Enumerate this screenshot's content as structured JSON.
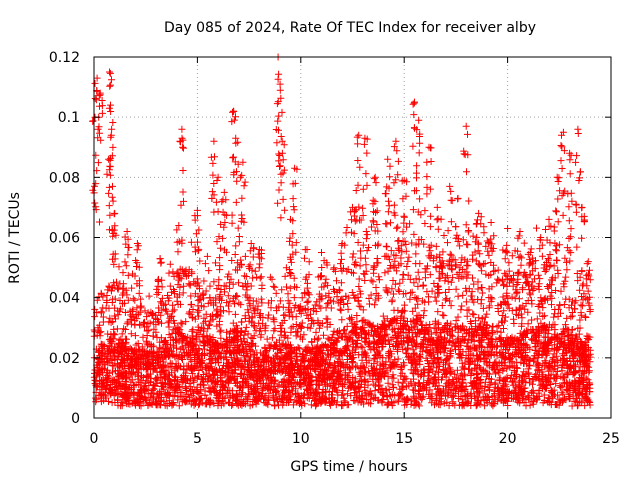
{
  "chart_data": {
    "type": "scatter",
    "title": "Day 085 of 2024, Rate Of TEC Index for receiver alby",
    "xlabel": "GPS time / hours",
    "ylabel": "ROTI / TECUs",
    "xlim": [
      0,
      25
    ],
    "ylim": [
      0,
      0.12
    ],
    "x_ticks": [
      0,
      5,
      10,
      15,
      20,
      25
    ],
    "x_tick_labels": [
      "0",
      "5",
      "10",
      "15",
      "20",
      "25"
    ],
    "y_ticks": [
      0,
      0.02,
      0.04,
      0.06,
      0.08,
      0.1,
      0.12
    ],
    "y_tick_labels": [
      "0",
      "0.02",
      "0.04",
      "0.06",
      "0.08",
      "0.1",
      "0.12"
    ],
    "grid": true,
    "marker": "+",
    "marker_color": "#ff0000",
    "seed": 85,
    "n_points": 5200,
    "x_range": [
      0,
      24
    ],
    "baseline_profile": [
      [
        0.0,
        0.016
      ],
      [
        1.0,
        0.02
      ],
      [
        2.0,
        0.016
      ],
      [
        3.0,
        0.015
      ],
      [
        4.0,
        0.022
      ],
      [
        5.0,
        0.02
      ],
      [
        6.0,
        0.018
      ],
      [
        7.0,
        0.022
      ],
      [
        8.0,
        0.016
      ],
      [
        9.0,
        0.018
      ],
      [
        10.0,
        0.016
      ],
      [
        11.0,
        0.017
      ],
      [
        12.0,
        0.022
      ],
      [
        13.0,
        0.024
      ],
      [
        14.0,
        0.024
      ],
      [
        15.0,
        0.025
      ],
      [
        16.0,
        0.024
      ],
      [
        17.0,
        0.023
      ],
      [
        18.0,
        0.022
      ],
      [
        19.0,
        0.022
      ],
      [
        20.0,
        0.02
      ],
      [
        21.0,
        0.021
      ],
      [
        22.0,
        0.023
      ],
      [
        23.0,
        0.022
      ],
      [
        24.0,
        0.016
      ]
    ],
    "peaks": [
      [
        0.05,
        0.1
      ],
      [
        0.15,
        0.113
      ],
      [
        0.3,
        0.108
      ],
      [
        0.75,
        0.115
      ],
      [
        0.8,
        0.104
      ],
      [
        0.85,
        0.096
      ],
      [
        1.0,
        0.068
      ],
      [
        1.6,
        0.062
      ],
      [
        2.1,
        0.058
      ],
      [
        3.2,
        0.053
      ],
      [
        4.1,
        0.064
      ],
      [
        4.25,
        0.096
      ],
      [
        5.0,
        0.069
      ],
      [
        5.8,
        0.092
      ],
      [
        6.0,
        0.08
      ],
      [
        6.3,
        0.075
      ],
      [
        6.75,
        0.102
      ],
      [
        6.85,
        0.093
      ],
      [
        7.2,
        0.085
      ],
      [
        7.6,
        0.058
      ],
      [
        8.0,
        0.056
      ],
      [
        8.9,
        0.12
      ],
      [
        9.0,
        0.111
      ],
      [
        9.1,
        0.092
      ],
      [
        9.5,
        0.066
      ],
      [
        9.7,
        0.083
      ],
      [
        10.3,
        0.056
      ],
      [
        11.0,
        0.055
      ],
      [
        12.0,
        0.058
      ],
      [
        12.5,
        0.07
      ],
      [
        12.8,
        0.094
      ],
      [
        13.1,
        0.093
      ],
      [
        13.6,
        0.08
      ],
      [
        14.2,
        0.086
      ],
      [
        14.6,
        0.092
      ],
      [
        15.0,
        0.079
      ],
      [
        15.5,
        0.105
      ],
      [
        15.7,
        0.099
      ],
      [
        16.2,
        0.09
      ],
      [
        16.6,
        0.07
      ],
      [
        17.2,
        0.077
      ],
      [
        17.6,
        0.073
      ],
      [
        18.0,
        0.097
      ],
      [
        18.6,
        0.068
      ],
      [
        19.2,
        0.065
      ],
      [
        20.0,
        0.063
      ],
      [
        20.6,
        0.062
      ],
      [
        21.1,
        0.055
      ],
      [
        21.6,
        0.06
      ],
      [
        22.0,
        0.066
      ],
      [
        22.4,
        0.08
      ],
      [
        22.7,
        0.095
      ],
      [
        23.0,
        0.088
      ],
      [
        23.4,
        0.096
      ],
      [
        23.6,
        0.07
      ],
      [
        23.9,
        0.052
      ]
    ]
  }
}
